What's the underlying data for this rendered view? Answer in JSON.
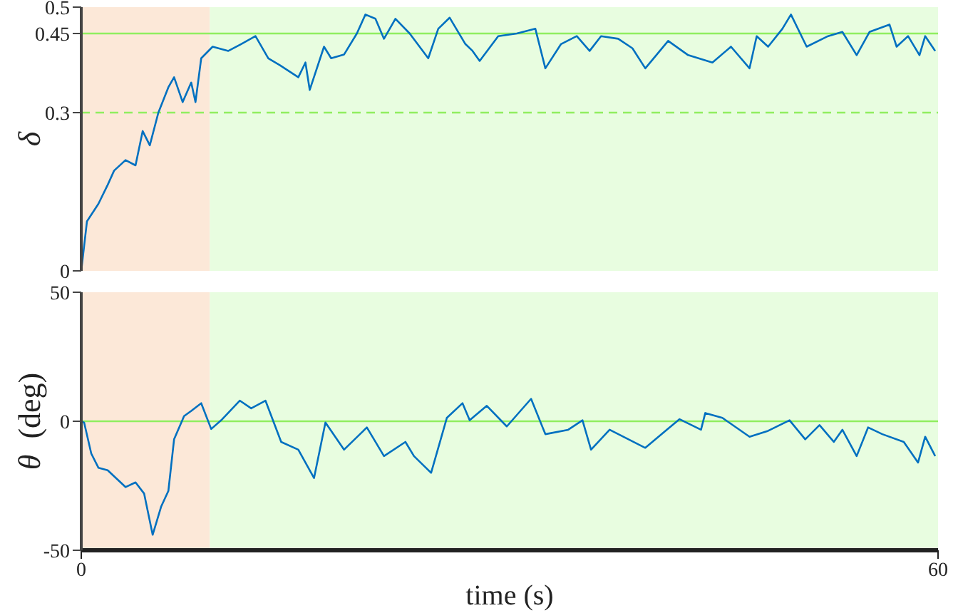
{
  "chart_data": [
    {
      "type": "line",
      "ylabel": "δ",
      "xlim": [
        0,
        60
      ],
      "ylim": [
        0,
        0.5
      ],
      "yticks": [
        0,
        0.3,
        0.45,
        0.5
      ],
      "tick_labels": "y",
      "bands": [
        {
          "axis": "x",
          "from": 0,
          "to": 9,
          "color": "#fce8d8"
        },
        {
          "axis": "x",
          "from": 9,
          "to": 60,
          "color": "#e8fde0"
        }
      ],
      "ref_lines": [
        {
          "axis": "y",
          "value": 0.45,
          "color": "#90ee60",
          "line_style": "solid"
        },
        {
          "axis": "y",
          "value": 0.3,
          "color": "#90ee60",
          "line_style": "dashed"
        }
      ],
      "series": [
        {
          "color": "#0070c0",
          "x": [
            0,
            0.4,
            1.2,
            1.85,
            2.3,
            3.1,
            3.8,
            4.3,
            4.8,
            5.4,
            6.1,
            6.5,
            7.1,
            7.7,
            8.0,
            8.4,
            9.2,
            10.3,
            11.2,
            12.2,
            13.1,
            13.9,
            15.2,
            15.7,
            16.0,
            17.0,
            17.5,
            18.4,
            19.3,
            19.9,
            20.6,
            21.2,
            22.0,
            23.0,
            24.3,
            25.0,
            25.8,
            26.9,
            27.4,
            27.9,
            29.2,
            30.5,
            31.8,
            32.5,
            33.6,
            34.7,
            35.6,
            36.4,
            37.6,
            38.6,
            39.5,
            41.1,
            42.5,
            44.2,
            45.5,
            46.8,
            47.3,
            48.1,
            49.1,
            49.7,
            50.8,
            52.3,
            53.3,
            54.3,
            55.2,
            56.6,
            57.1,
            57.9,
            58.7,
            59.1,
            59.8
          ],
          "values": [
            0,
            0.094,
            0.127,
            0.163,
            0.19,
            0.21,
            0.2,
            0.265,
            0.238,
            0.3,
            0.348,
            0.367,
            0.32,
            0.357,
            0.32,
            0.403,
            0.425,
            0.417,
            0.43,
            0.445,
            0.403,
            0.39,
            0.367,
            0.395,
            0.343,
            0.425,
            0.403,
            0.41,
            0.45,
            0.486,
            0.478,
            0.44,
            0.478,
            0.45,
            0.403,
            0.459,
            0.48,
            0.43,
            0.417,
            0.398,
            0.445,
            0.45,
            0.459,
            0.384,
            0.43,
            0.445,
            0.417,
            0.445,
            0.44,
            0.422,
            0.384,
            0.436,
            0.409,
            0.395,
            0.425,
            0.384,
            0.445,
            0.425,
            0.459,
            0.486,
            0.425,
            0.445,
            0.453,
            0.409,
            0.453,
            0.467,
            0.425,
            0.445,
            0.409,
            0.445,
            0.417
          ]
        }
      ]
    },
    {
      "type": "line",
      "ylabel": "θ  (deg)",
      "xlabel": "time (s)",
      "xlim": [
        0,
        60
      ],
      "xticks": [
        0,
        60
      ],
      "ylim": [
        -50,
        50
      ],
      "yticks": [
        -50,
        0,
        50
      ],
      "bands": [
        {
          "axis": "x",
          "from": 0,
          "to": 9,
          "color": "#fce8d8"
        },
        {
          "axis": "x",
          "from": 9,
          "to": 60,
          "color": "#e8fde0"
        }
      ],
      "ref_lines": [
        {
          "axis": "y",
          "value": 0,
          "color": "#90ee60",
          "line_style": "solid"
        }
      ],
      "series": [
        {
          "color": "#0070c0",
          "x": [
            0,
            0.2,
            0.7,
            1.2,
            1.85,
            3.1,
            3.8,
            4.4,
            5.0,
            5.6,
            6.1,
            6.5,
            7.2,
            7.7,
            8.4,
            9.1,
            9.8,
            11.1,
            11.9,
            12.9,
            14.0,
            15.2,
            16.3,
            17.1,
            18.4,
            20.0,
            21.2,
            22.7,
            23.3,
            24.5,
            25.6,
            26.7,
            27.2,
            28.4,
            29.8,
            31.5,
            32.5,
            34.1,
            35.1,
            35.7,
            37.0,
            39.5,
            41.0,
            41.9,
            43.4,
            43.7,
            44.9,
            46.8,
            48.1,
            49.6,
            50.7,
            51.7,
            52.7,
            53.3,
            54.3,
            55.1,
            56.1,
            57.6,
            58.6,
            59.1,
            59.8
          ],
          "values": [
            0,
            -0.5,
            -12.5,
            -18,
            -19,
            -25.5,
            -23.7,
            -28,
            -44,
            -33,
            -27,
            -7,
            2,
            4,
            7,
            -3,
            0.4,
            8,
            5,
            8,
            -8,
            -11,
            -22,
            -0.5,
            -11,
            -2.4,
            -13.5,
            -8,
            -13.5,
            -20,
            1.3,
            7,
            0.4,
            6,
            -2,
            8.7,
            -5,
            -3.3,
            0.4,
            -11,
            -3.3,
            -10.3,
            -3.3,
            0.8,
            -3.3,
            3.2,
            1.3,
            -6,
            -3.7,
            0.4,
            -7,
            -1.5,
            -8,
            -3.3,
            -13.5,
            -2.4,
            -5,
            -8,
            -16,
            -6,
            -13.5
          ]
        }
      ]
    }
  ]
}
